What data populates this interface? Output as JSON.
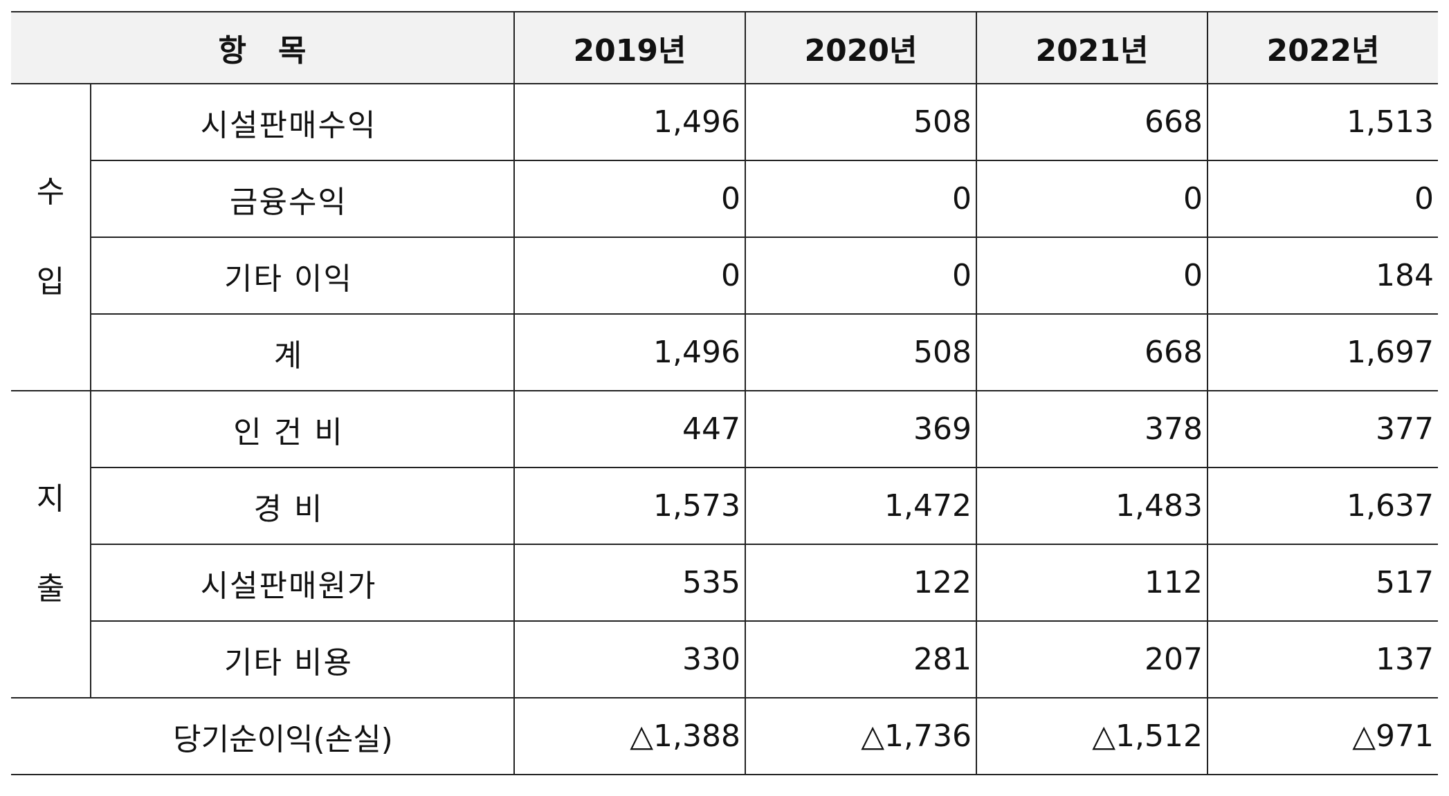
{
  "header": {
    "item": "항   목",
    "years": [
      "2019년",
      "2020년",
      "2021년",
      "2022년"
    ]
  },
  "groups": {
    "income": {
      "char1": "수",
      "char2": "입"
    },
    "expense": {
      "char1": "지",
      "char2": "출"
    }
  },
  "rows": [
    {
      "label": "시설판매수익",
      "values": [
        "1,496",
        "508",
        "668",
        "1,513"
      ]
    },
    {
      "label": "금융수익",
      "values": [
        "0",
        "0",
        "0",
        "0"
      ]
    },
    {
      "label": "기타 이익",
      "values": [
        "0",
        "0",
        "0",
        "184"
      ]
    },
    {
      "label": "계",
      "values": [
        "1,496",
        "508",
        "668",
        "1,697"
      ]
    },
    {
      "label": "인 건 비",
      "values": [
        "447",
        "369",
        "378",
        "377"
      ]
    },
    {
      "label": "경 비",
      "values": [
        "1,573",
        "1,472",
        "1,483",
        "1,637"
      ]
    },
    {
      "label": "시설판매원가",
      "values": [
        "535",
        "122",
        "112",
        "517"
      ]
    },
    {
      "label": "기타 비용",
      "values": [
        "330",
        "281",
        "207",
        "137"
      ]
    }
  ],
  "total": {
    "label": "당기순이익(손실)",
    "values": [
      "△1,388",
      "△1,736",
      "△1,512",
      "△971"
    ]
  }
}
